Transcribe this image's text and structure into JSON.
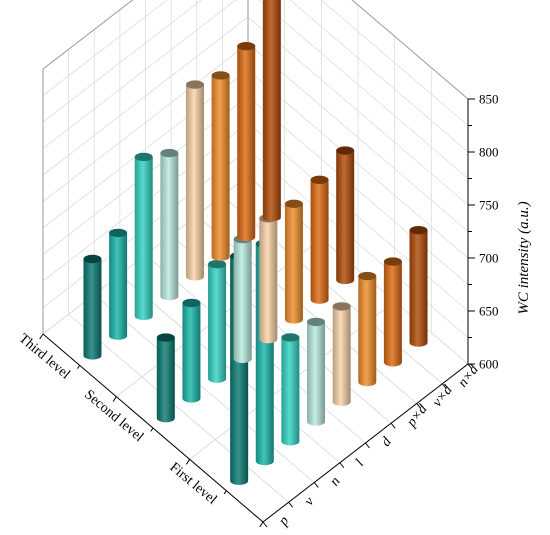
{
  "chart_data": {
    "type": "bar3d",
    "zlabel": "WC intensity (a.u.)",
    "zlim": [
      600,
      850
    ],
    "zticks": [
      "600",
      "650",
      "700",
      "750",
      "800",
      "850"
    ],
    "levels": [
      "First level",
      "Second level",
      "Third level"
    ],
    "factors": [
      "p",
      "v",
      "n",
      "l",
      "d",
      "p×d",
      "v×d",
      "n×d"
    ],
    "series": [
      {
        "level": "First level",
        "values": [
          812,
          805,
          698,
          694,
          690,
          700,
          695,
          706
        ]
      },
      {
        "level": "Second level",
        "values": [
          676,
          690,
          708,
          713,
          714,
          709,
          713,
          722
        ]
      },
      {
        "level": "Third level",
        "values": [
          691,
          697,
          750,
          735,
          781,
          771,
          780,
          815
        ]
      }
    ],
    "colors": [
      "#0c7b74",
      "#19b7aa",
      "#34d4c4",
      "#b8eadf",
      "#f9d3a8",
      "#f28d2a",
      "#dd6a12",
      "#b24a08"
    ],
    "grid": true
  }
}
